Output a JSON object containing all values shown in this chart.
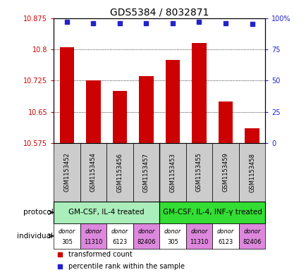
{
  "title": "GDS5384 / 8032871",
  "samples": [
    "GSM1153452",
    "GSM1153454",
    "GSM1153456",
    "GSM1153457",
    "GSM1153453",
    "GSM1153455",
    "GSM1153459",
    "GSM1153458"
  ],
  "bar_values": [
    10.805,
    10.725,
    10.7,
    10.735,
    10.775,
    10.815,
    10.675,
    10.61
  ],
  "percentile_values": [
    97,
    96,
    96,
    96,
    96,
    97,
    96,
    95
  ],
  "y_min": 10.575,
  "y_max": 10.875,
  "y_ticks": [
    10.575,
    10.65,
    10.725,
    10.8,
    10.875
  ],
  "y2_ticks": [
    0,
    25,
    50,
    75,
    100
  ],
  "bar_color": "#cc0000",
  "dot_color": "#2222cc",
  "protocol_groups": [
    {
      "label": "GM-CSF, IL-4 treated",
      "start": 0,
      "end": 3,
      "color": "#aaeebb"
    },
    {
      "label": "GM-CSF, IL-4, INF-γ treated",
      "start": 4,
      "end": 7,
      "color": "#33dd33"
    }
  ],
  "individuals": [
    {
      "label": "donor\n305",
      "color": "#ffffff"
    },
    {
      "label": "donor\n11310",
      "color": "#dd88dd"
    },
    {
      "label": "donor\n6123",
      "color": "#ffffff"
    },
    {
      "label": "donor\n82406",
      "color": "#dd88dd"
    },
    {
      "label": "donor\n305",
      "color": "#ffffff"
    },
    {
      "label": "donor\n11310",
      "color": "#dd88dd"
    },
    {
      "label": "donor\n6123",
      "color": "#ffffff"
    },
    {
      "label": "donor\n82406",
      "color": "#dd88dd"
    }
  ],
  "legend_bar_label": "transformed count",
  "legend_dot_label": "percentile rank within the sample",
  "protocol_label": "protocol",
  "individual_label": "individual",
  "left_color": "#cc0000",
  "right_color": "#2222cc",
  "grid_color": "#000000",
  "tick_label_area_color": "#cccccc",
  "sample_label_fontsize": 6.0,
  "protocol_fontsize": 7.5,
  "individual_fontsize": 6.0,
  "legend_fontsize": 7.0,
  "ylabel_fontsize": 7.0,
  "title_fontsize": 10
}
